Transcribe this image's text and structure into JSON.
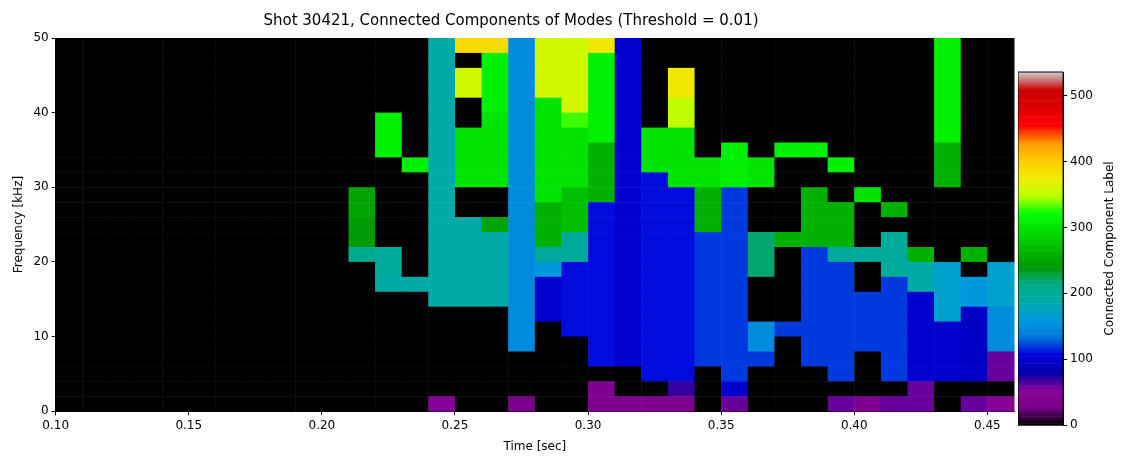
{
  "chart_data": {
    "type": "heatmap",
    "title": "Shot 30421, Connected Components of Modes (Threshold = 0.01)",
    "xlabel": "Time [sec]",
    "ylabel": "Frequency [kHz]",
    "clabel": "Connected Component Label",
    "x": [
      0.105,
      0.115,
      0.125,
      0.135,
      0.145,
      0.155,
      0.165,
      0.175,
      0.185,
      0.195,
      0.205,
      0.215,
      0.225,
      0.235,
      0.245,
      0.255,
      0.265,
      0.275,
      0.285,
      0.295,
      0.305,
      0.315,
      0.325,
      0.335,
      0.345,
      0.355,
      0.365,
      0.375,
      0.385,
      0.395,
      0.405,
      0.415,
      0.425,
      0.435,
      0.445,
      0.455
    ],
    "y": [
      49,
      47,
      45,
      43,
      41,
      39,
      37,
      35,
      33,
      31,
      29,
      27,
      25,
      23,
      21,
      19,
      17,
      15,
      13,
      11,
      9,
      7,
      5,
      3,
      1
    ],
    "xlim": [
      0.1,
      0.46
    ],
    "xticks": [
      {
        "value": 0.1,
        "label": "0.10"
      },
      0.15,
      {
        "value": 0.2,
        "label": "0.20"
      },
      0.25,
      {
        "value": 0.3,
        "label": "0.30"
      },
      0.35,
      {
        "value": 0.4,
        "label": "0.40"
      },
      0.45
    ],
    "ylim": [
      0,
      50
    ],
    "yticks": [
      0,
      10,
      20,
      30,
      40,
      50
    ],
    "clim": [
      0,
      536
    ],
    "cticks": [
      0,
      100,
      200,
      300,
      400,
      500
    ],
    "cells": [
      [
        0,
        0,
        0,
        0,
        0,
        0,
        0,
        0,
        0,
        0,
        0,
        0,
        0,
        0,
        190,
        390,
        390,
        150,
        360,
        360,
        380,
        100,
        0,
        0,
        0,
        0,
        0,
        0,
        0,
        0,
        0,
        0,
        0,
        310,
        0,
        0
      ],
      [
        0,
        0,
        0,
        0,
        0,
        0,
        0,
        0,
        0,
        0,
        0,
        0,
        0,
        0,
        190,
        0,
        310,
        150,
        360,
        360,
        310,
        100,
        0,
        0,
        0,
        0,
        0,
        0,
        0,
        0,
        0,
        0,
        0,
        310,
        0,
        0
      ],
      [
        0,
        0,
        0,
        0,
        0,
        0,
        0,
        0,
        0,
        0,
        0,
        0,
        0,
        0,
        190,
        360,
        310,
        150,
        360,
        360,
        310,
        100,
        0,
        380,
        0,
        0,
        0,
        0,
        0,
        0,
        0,
        0,
        0,
        310,
        0,
        0
      ],
      [
        0,
        0,
        0,
        0,
        0,
        0,
        0,
        0,
        0,
        0,
        0,
        0,
        0,
        0,
        190,
        360,
        310,
        150,
        360,
        360,
        310,
        100,
        0,
        380,
        0,
        0,
        0,
        0,
        0,
        0,
        0,
        0,
        0,
        310,
        0,
        0
      ],
      [
        0,
        0,
        0,
        0,
        0,
        0,
        0,
        0,
        0,
        0,
        0,
        0,
        0,
        0,
        190,
        0,
        310,
        150,
        300,
        360,
        310,
        100,
        0,
        350,
        0,
        0,
        0,
        0,
        0,
        0,
        0,
        0,
        0,
        310,
        0,
        0
      ],
      [
        0,
        0,
        0,
        0,
        0,
        0,
        0,
        0,
        0,
        0,
        0,
        0,
        310,
        0,
        190,
        0,
        300,
        150,
        300,
        330,
        310,
        100,
        0,
        350,
        0,
        0,
        0,
        0,
        0,
        0,
        0,
        0,
        0,
        310,
        0,
        0
      ],
      [
        0,
        0,
        0,
        0,
        0,
        0,
        0,
        0,
        0,
        0,
        0,
        0,
        310,
        0,
        190,
        300,
        300,
        150,
        300,
        300,
        310,
        100,
        300,
        300,
        0,
        0,
        0,
        0,
        0,
        0,
        0,
        0,
        0,
        310,
        0,
        0
      ],
      [
        0,
        0,
        0,
        0,
        0,
        0,
        0,
        0,
        0,
        0,
        0,
        0,
        310,
        0,
        190,
        300,
        300,
        150,
        300,
        300,
        260,
        100,
        300,
        300,
        0,
        310,
        0,
        310,
        310,
        0,
        0,
        0,
        0,
        260,
        0,
        0
      ],
      [
        0,
        0,
        0,
        0,
        0,
        0,
        0,
        0,
        0,
        0,
        0,
        0,
        0,
        310,
        190,
        300,
        300,
        150,
        300,
        300,
        260,
        100,
        300,
        300,
        300,
        310,
        300,
        0,
        0,
        310,
        0,
        0,
        0,
        260,
        0,
        0
      ],
      [
        0,
        0,
        0,
        0,
        0,
        0,
        0,
        0,
        0,
        0,
        0,
        0,
        0,
        0,
        190,
        300,
        300,
        150,
        300,
        300,
        260,
        100,
        110,
        300,
        300,
        310,
        300,
        0,
        0,
        0,
        0,
        0,
        0,
        260,
        0,
        0
      ],
      [
        0,
        0,
        0,
        0,
        0,
        0,
        0,
        0,
        0,
        0,
        0,
        250,
        0,
        0,
        190,
        0,
        0,
        150,
        300,
        270,
        260,
        100,
        110,
        110,
        260,
        120,
        0,
        0,
        260,
        0,
        300,
        0,
        0,
        0,
        0,
        0
      ],
      [
        0,
        0,
        0,
        0,
        0,
        0,
        0,
        0,
        0,
        0,
        0,
        250,
        0,
        0,
        190,
        0,
        0,
        150,
        260,
        270,
        110,
        100,
        110,
        110,
        260,
        120,
        0,
        0,
        260,
        260,
        0,
        260,
        0,
        0,
        0,
        0
      ],
      [
        0,
        0,
        0,
        0,
        0,
        0,
        0,
        0,
        0,
        0,
        0,
        240,
        0,
        0,
        190,
        190,
        250,
        150,
        260,
        270,
        110,
        100,
        110,
        110,
        260,
        120,
        0,
        0,
        260,
        260,
        0,
        0,
        0,
        0,
        0,
        0
      ],
      [
        0,
        0,
        0,
        0,
        0,
        0,
        0,
        0,
        0,
        0,
        0,
        240,
        0,
        0,
        190,
        190,
        190,
        150,
        260,
        200,
        110,
        100,
        110,
        110,
        120,
        120,
        220,
        260,
        260,
        260,
        0,
        200,
        0,
        0,
        0,
        0
      ],
      [
        0,
        0,
        0,
        0,
        0,
        0,
        0,
        0,
        0,
        0,
        0,
        210,
        200,
        0,
        190,
        190,
        190,
        150,
        200,
        200,
        110,
        100,
        110,
        110,
        120,
        120,
        220,
        0,
        120,
        200,
        200,
        200,
        260,
        0,
        260,
        0
      ],
      [
        0,
        0,
        0,
        0,
        0,
        0,
        0,
        0,
        0,
        0,
        0,
        0,
        200,
        0,
        190,
        190,
        190,
        150,
        160,
        110,
        110,
        100,
        110,
        110,
        120,
        120,
        220,
        0,
        120,
        120,
        0,
        200,
        190,
        170,
        0,
        170
      ],
      [
        0,
        0,
        0,
        0,
        0,
        0,
        0,
        0,
        0,
        0,
        0,
        0,
        190,
        190,
        190,
        190,
        190,
        150,
        100,
        110,
        110,
        100,
        110,
        110,
        120,
        120,
        0,
        0,
        120,
        120,
        0,
        120,
        190,
        170,
        160,
        170
      ],
      [
        0,
        0,
        0,
        0,
        0,
        0,
        0,
        0,
        0,
        0,
        0,
        0,
        0,
        0,
        190,
        190,
        190,
        150,
        100,
        110,
        110,
        100,
        110,
        110,
        120,
        120,
        0,
        0,
        120,
        120,
        120,
        120,
        100,
        170,
        160,
        170
      ],
      [
        0,
        0,
        0,
        0,
        0,
        0,
        0,
        0,
        0,
        0,
        0,
        0,
        0,
        0,
        0,
        0,
        0,
        150,
        100,
        110,
        110,
        100,
        110,
        110,
        120,
        120,
        0,
        0,
        120,
        120,
        120,
        120,
        100,
        170,
        95,
        150
      ],
      [
        0,
        0,
        0,
        0,
        0,
        0,
        0,
        0,
        0,
        0,
        0,
        0,
        0,
        0,
        0,
        0,
        0,
        150,
        0,
        110,
        110,
        100,
        110,
        110,
        120,
        120,
        150,
        120,
        120,
        120,
        120,
        120,
        100,
        100,
        95,
        150
      ],
      [
        0,
        0,
        0,
        0,
        0,
        0,
        0,
        0,
        0,
        0,
        0,
        0,
        0,
        0,
        0,
        0,
        0,
        150,
        0,
        0,
        110,
        100,
        110,
        110,
        120,
        120,
        150,
        0,
        120,
        120,
        120,
        120,
        100,
        100,
        95,
        150
      ],
      [
        0,
        0,
        0,
        0,
        0,
        0,
        0,
        0,
        0,
        0,
        0,
        0,
        0,
        0,
        0,
        0,
        0,
        0,
        0,
        0,
        110,
        100,
        110,
        110,
        120,
        120,
        120,
        0,
        120,
        120,
        0,
        120,
        100,
        100,
        95,
        60
      ],
      [
        0,
        0,
        0,
        0,
        0,
        0,
        0,
        0,
        0,
        0,
        0,
        0,
        0,
        0,
        0,
        0,
        0,
        0,
        0,
        0,
        0,
        0,
        110,
        110,
        0,
        120,
        0,
        0,
        0,
        120,
        0,
        120,
        100,
        100,
        95,
        60
      ],
      [
        0,
        0,
        0,
        0,
        0,
        0,
        0,
        0,
        0,
        0,
        0,
        0,
        0,
        0,
        0,
        0,
        0,
        0,
        0,
        0,
        40,
        0,
        0,
        70,
        0,
        100,
        0,
        0,
        0,
        0,
        0,
        0,
        60,
        0,
        0,
        0
      ],
      [
        0,
        0,
        0,
        0,
        0,
        0,
        0,
        0,
        0,
        0,
        0,
        0,
        0,
        0,
        50,
        0,
        0,
        30,
        0,
        0,
        40,
        40,
        40,
        40,
        0,
        60,
        0,
        0,
        0,
        60,
        40,
        60,
        60,
        0,
        60,
        50
      ]
    ]
  }
}
